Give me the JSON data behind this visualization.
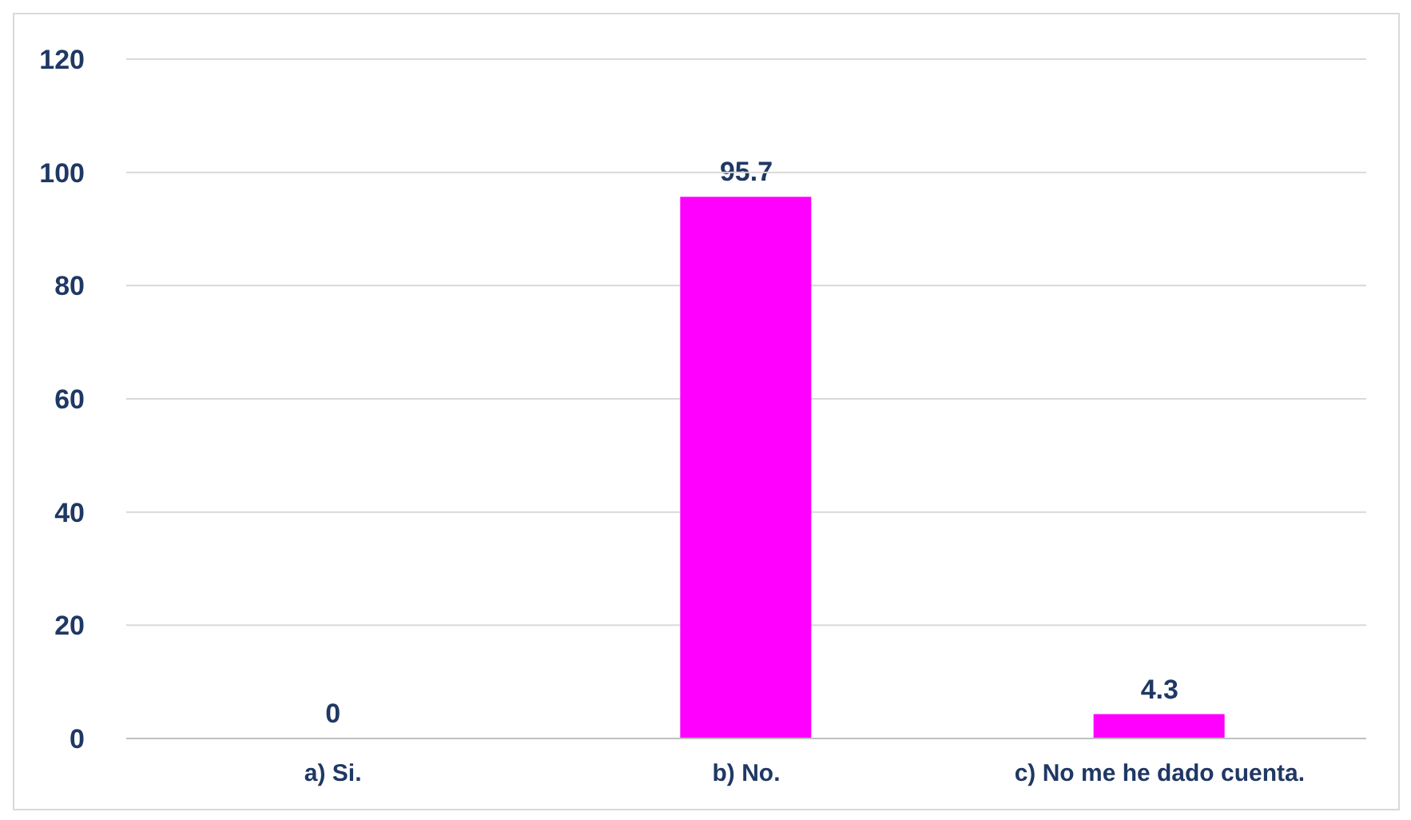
{
  "chart_data": {
    "type": "bar",
    "categories": [
      "a) Si.",
      "b) No.",
      "c) No me he dado cuenta."
    ],
    "values": [
      0,
      95.7,
      4.3
    ],
    "color": "#ff00ff",
    "ylim": [
      0,
      120
    ],
    "yticks": [
      0,
      20,
      40,
      60,
      80,
      100,
      120
    ],
    "grid": "y",
    "data_labels": true
  }
}
